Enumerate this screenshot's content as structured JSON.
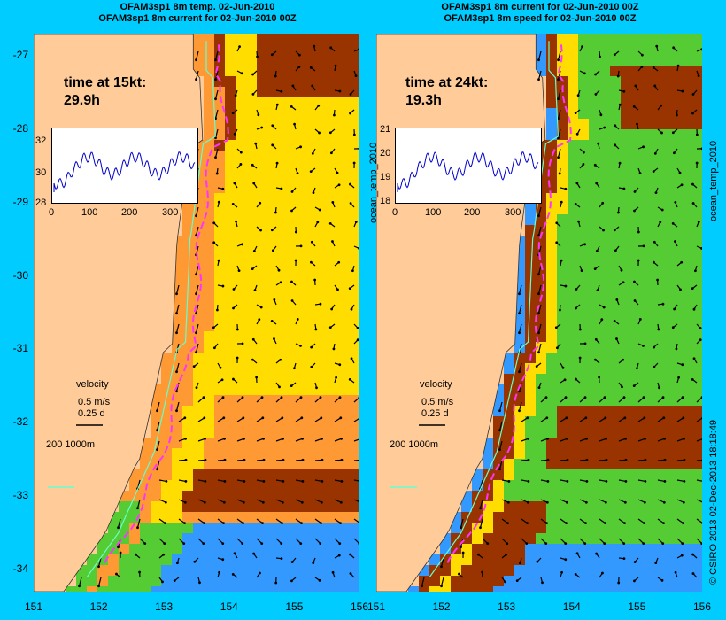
{
  "left_panel": {
    "title_line1": "OFAM3sp1 8m temp. 02-Jun-2010",
    "title_line2": "OFAM3sp1 8m current for 02-Jun-2010 00Z",
    "time_label": "time at 15kt:",
    "time_value": "29.9h",
    "inset_yticks": [
      "32",
      "30",
      "28"
    ],
    "inset_xticks": [
      "0",
      "100",
      "200",
      "300"
    ],
    "velocity_label": "velocity",
    "velocity_speed": "0.5 m/s",
    "velocity_days": "0.25 d",
    "depth_label": "200  1000m"
  },
  "right_panel": {
    "title_line1": "OFAM3sp1 8m current for 02-Jun-2010 00Z",
    "title_line2": "OFAM3sp1 8m speed for 02-Jun-2010 00Z",
    "time_label": "time at 24kt:",
    "time_value": "19.3h",
    "inset_yticks": [
      "21",
      "20",
      "19",
      "18"
    ],
    "inset_xticks": [
      "0",
      "100",
      "200",
      "300"
    ],
    "inset_side_label": "ocean_temp_2010",
    "velocity_label": "velocity",
    "velocity_speed": "0.5 m/s",
    "velocity_days": "0.25 d",
    "depth_label": "200  1000m"
  },
  "side_label": "ocean_temp_2010",
  "credit": "© CSIRO 2013   02-Dec-2013 18:18:49",
  "y_ticks": [
    "-27",
    "-28",
    "-29",
    "-30",
    "-31",
    "-32",
    "-33",
    "-34"
  ],
  "x_ticks": [
    "151",
    "152",
    "153",
    "154",
    "155",
    "156"
  ],
  "colors": {
    "frame": "#00ccff",
    "land": "#ffcc99",
    "warm": "#993300",
    "orange": "#ff9933",
    "yellow": "#ffdd00",
    "green": "#55cc33",
    "cool": "#3399ff",
    "track": "#ff33ff",
    "contour": "#66ffcc"
  }
}
